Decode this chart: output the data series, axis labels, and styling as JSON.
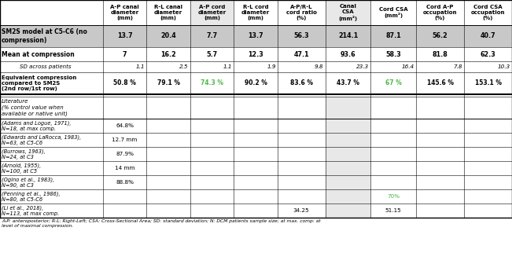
{
  "col_headers": [
    "A-P canal\ndiameter\n(mm)",
    "R-L canal\ndiameter\n(mm)",
    "A-P cord\ndiameter\n(mm)",
    "R-L cord\ndiameter\n(mm)",
    "A-P/R-L\ncord ratio\n(%)",
    "Canal\nCSA\n(mm²)",
    "Cord CSA\n(mm²)",
    "Cord A-P\noccupation\n(%)",
    "Cord CSA\noccupation\n(%)"
  ],
  "row0_label": "SM2S model at C5-C6 (no\ncompression)",
  "row1_label": "Mean at compression",
  "row2_label": "SD across patients",
  "row3_label": "Equivalent compression\ncompared to SM2S\n(2nd row/1st row)",
  "lit_header_label": "Literature\n(% control value when\navailable or native unit)",
  "lit_labels": [
    "(Adams and Logue, 1971),\nN=18, at max comp.",
    "(Edwards and LaRocca, 1983),\nN=63, at C5-C6",
    "(Burrows, 1963),\nN=24, at C3",
    "(Arnold, 1955),\nN=100, at C5",
    "(Ogino et al., 1983),\nN=90, at C3",
    "(Penning et al., 1986),\nN=80, at C5-C6",
    "(Li et al., 2018),\nN=113, at max comp."
  ],
  "row0_data": [
    "13.7",
    "20.4",
    "7.7",
    "13.7",
    "56.3",
    "214.1",
    "87.1",
    "56.2",
    "40.7"
  ],
  "row1_data": [
    "7",
    "16.2",
    "5.7",
    "12.3",
    "47.1",
    "93.6",
    "58.3",
    "81.8",
    "62.3"
  ],
  "row2_data": [
    "1.1",
    "2.5",
    "1.1",
    "1.9",
    "9.8",
    "23.3",
    "16.4",
    "7.8",
    "10.3"
  ],
  "row3_data": [
    "50.8 %",
    "79.1 %",
    "74.3 %",
    "90.2 %",
    "83.6 %",
    "43.7 %",
    "67 %",
    "145.6 %",
    "153.1 %"
  ],
  "row3_green_cols": [
    2,
    6
  ],
  "lit_col0_data": [
    "64.8%",
    "12.7 mm",
    "87.9%",
    "14 mm",
    "88.8%",
    "",
    ""
  ],
  "lit_col4_data": [
    "",
    "",
    "",
    "",
    "",
    "",
    "34.25"
  ],
  "lit_col6_data": [
    "",
    "",
    "",
    "",
    "",
    "70%",
    "51.15"
  ],
  "lit_col6_green": [
    5
  ],
  "gray_bg": "#c8c8c8",
  "light_gray_bg": "#e8e8e8",
  "green_color": "#4db848",
  "footer": "A-P: anteroposterior; R-L: Right-Left; CSA: Cross-Sectional Area; SD: standard deviation; N: DCM patients sample size; at max. comp: at\nlevel of maximal compression."
}
